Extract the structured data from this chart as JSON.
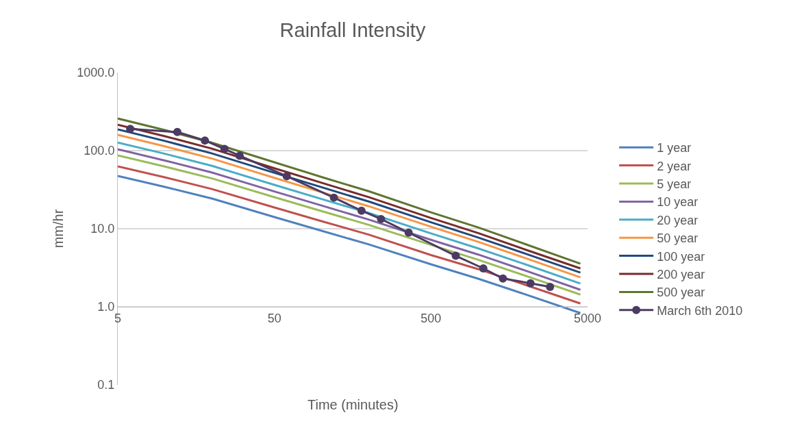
{
  "chart_data": {
    "type": "line",
    "title": "Rainfall Intensity",
    "xlabel": "Time (minutes)",
    "ylabel": "mm/hr",
    "log": "xy",
    "grid": "y",
    "legend": "right",
    "marker": "none",
    "line_style": "solid",
    "x": [
      5,
      10,
      20,
      50,
      100,
      200,
      500,
      1000,
      2000,
      4500
    ],
    "xlim": [
      5,
      5000
    ],
    "xticks": [
      5,
      50,
      500,
      5000
    ],
    "ylim": [
      0.1,
      1000
    ],
    "yticks": [
      {
        "value": 0.1,
        "label": "0.1"
      },
      {
        "value": 1,
        "label": "1.0"
      },
      {
        "value": 10,
        "label": "10.0"
      },
      {
        "value": 100,
        "label": "100.0"
      },
      {
        "value": 1000,
        "label": "1000.0"
      }
    ],
    "series": [
      {
        "name": "1 year",
        "color": "#4f81bd",
        "values": [
          47.3,
          34.3,
          24.3,
          14.1,
          9.4,
          6.3,
          3.5,
          2.29,
          1.44,
          0.83
        ]
      },
      {
        "name": "2 year",
        "color": "#c0504d",
        "values": [
          62.8,
          45.5,
          32.2,
          18.7,
          12.5,
          8.4,
          4.6,
          3.04,
          1.91,
          1.1
        ]
      },
      {
        "name": "5 year",
        "color": "#9bbb59",
        "values": [
          86.7,
          62.5,
          44,
          25.3,
          16.8,
          11.2,
          6.2,
          4,
          2.5,
          1.43
        ]
      },
      {
        "name": "10 year",
        "color": "#8064a2",
        "values": [
          104,
          74.7,
          52.4,
          30,
          19.8,
          13.1,
          7.2,
          4.67,
          2.91,
          1.65
        ]
      },
      {
        "name": "20 year",
        "color": "#4bacc6",
        "values": [
          127,
          91.1,
          63.8,
          36.4,
          24,
          15.9,
          8.7,
          5.6,
          3.5,
          1.98
        ]
      },
      {
        "name": "50 year",
        "color": "#f79646",
        "values": [
          159,
          113.5,
          79,
          44.8,
          29.4,
          19.4,
          10.6,
          6.8,
          4.2,
          2.38
        ]
      },
      {
        "name": "100 year",
        "color": "#1f497d",
        "values": [
          187,
          133,
          92,
          52,
          34,
          22.3,
          12.1,
          7.7,
          4.8,
          2.74
        ]
      },
      {
        "name": "200 year",
        "color": "#772c2a",
        "values": [
          215,
          153,
          106,
          59.5,
          38.8,
          25.4,
          13.7,
          8.8,
          5.4,
          3.1
        ]
      },
      {
        "name": "500 year",
        "color": "#5f7530",
        "values": [
          258,
          183,
          126,
          71,
          46,
          30.2,
          16.2,
          10.4,
          6.35,
          3.56
        ]
      },
      {
        "name": "March 6th 2010",
        "color": "#4b3b63",
        "marker": "circle",
        "x": [
          6,
          12,
          18,
          24,
          30,
          60,
          120,
          180,
          240,
          360,
          720,
          1080,
          1440,
          2160,
          2880
        ],
        "values": [
          190,
          173,
          135,
          105,
          86,
          47,
          25,
          17,
          13.3,
          8.9,
          4.5,
          3.1,
          2.3,
          2,
          1.8
        ]
      }
    ]
  }
}
